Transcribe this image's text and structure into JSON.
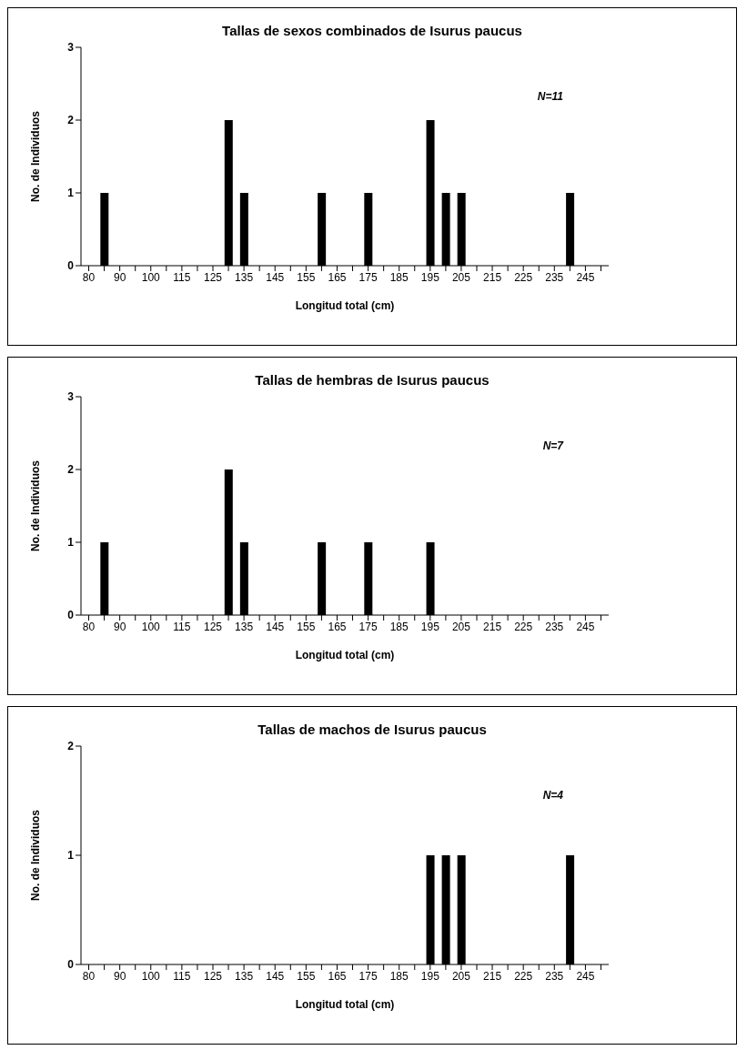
{
  "chart_data": [
    {
      "type": "bar",
      "title": "Tallas de sexos combinados de Isurus paucus",
      "xlabel": "Longitud total (cm)",
      "ylabel": "No. de Individuos",
      "categories": [
        "80",
        null,
        "90",
        null,
        "100",
        null,
        "115",
        null,
        "125",
        null,
        "135",
        null,
        "145",
        null,
        "155",
        null,
        "165",
        null,
        "175",
        null,
        "185",
        null,
        "195",
        null,
        "205",
        null,
        "215",
        null,
        "225",
        null,
        "235",
        null,
        "245",
        null
      ],
      "values": [
        0,
        1,
        0,
        0,
        0,
        0,
        0,
        0,
        0,
        2,
        1,
        0,
        0,
        0,
        0,
        1,
        0,
        0,
        1,
        0,
        0,
        0,
        2,
        1,
        1,
        0,
        0,
        0,
        0,
        0,
        0,
        1,
        0,
        0
      ],
      "color": "#000000",
      "ylim": [
        0,
        3
      ],
      "yticks": [
        0,
        1,
        2,
        3
      ],
      "grid": false,
      "annotations": [
        "N=11"
      ]
    },
    {
      "type": "bar",
      "title": "Tallas de hembras de Isurus paucus",
      "xlabel": "Longitud total (cm)",
      "ylabel": "No. de Individuos",
      "categories": [
        "80",
        null,
        "90",
        null,
        "100",
        null,
        "115",
        null,
        "125",
        null,
        "135",
        null,
        "145",
        null,
        "155",
        null,
        "165",
        null,
        "175",
        null,
        "185",
        null,
        "195",
        null,
        "205",
        null,
        "215",
        null,
        "225",
        null,
        "235",
        null,
        "245",
        null
      ],
      "values": [
        0,
        1,
        0,
        0,
        0,
        0,
        0,
        0,
        0,
        2,
        1,
        0,
        0,
        0,
        0,
        1,
        0,
        0,
        1,
        0,
        0,
        0,
        1,
        0,
        0,
        0,
        0,
        0,
        0,
        0,
        0,
        0,
        0,
        0
      ],
      "color": "#000000",
      "ylim": [
        0,
        3
      ],
      "yticks": [
        0,
        1,
        2,
        3
      ],
      "grid": false,
      "annotations": [
        "N=7"
      ]
    },
    {
      "type": "bar",
      "title": "Tallas de machos de Isurus paucus",
      "xlabel": "Longitud total (cm)",
      "ylabel": "No. de Individuos",
      "categories": [
        "80",
        null,
        "90",
        null,
        "100",
        null,
        "115",
        null,
        "125",
        null,
        "135",
        null,
        "145",
        null,
        "155",
        null,
        "165",
        null,
        "175",
        null,
        "185",
        null,
        "195",
        null,
        "205",
        null,
        "215",
        null,
        "225",
        null,
        "235",
        null,
        "245",
        null
      ],
      "values": [
        0,
        0,
        0,
        0,
        0,
        0,
        0,
        0,
        0,
        0,
        0,
        0,
        0,
        0,
        0,
        0,
        0,
        0,
        0,
        0,
        0,
        0,
        1,
        1,
        1,
        0,
        0,
        0,
        0,
        0,
        0,
        1,
        0,
        0
      ],
      "color": "#000000",
      "ylim": [
        0,
        2
      ],
      "yticks": [
        0,
        1,
        2
      ],
      "grid": false,
      "annotations": [
        "N=4"
      ]
    }
  ]
}
